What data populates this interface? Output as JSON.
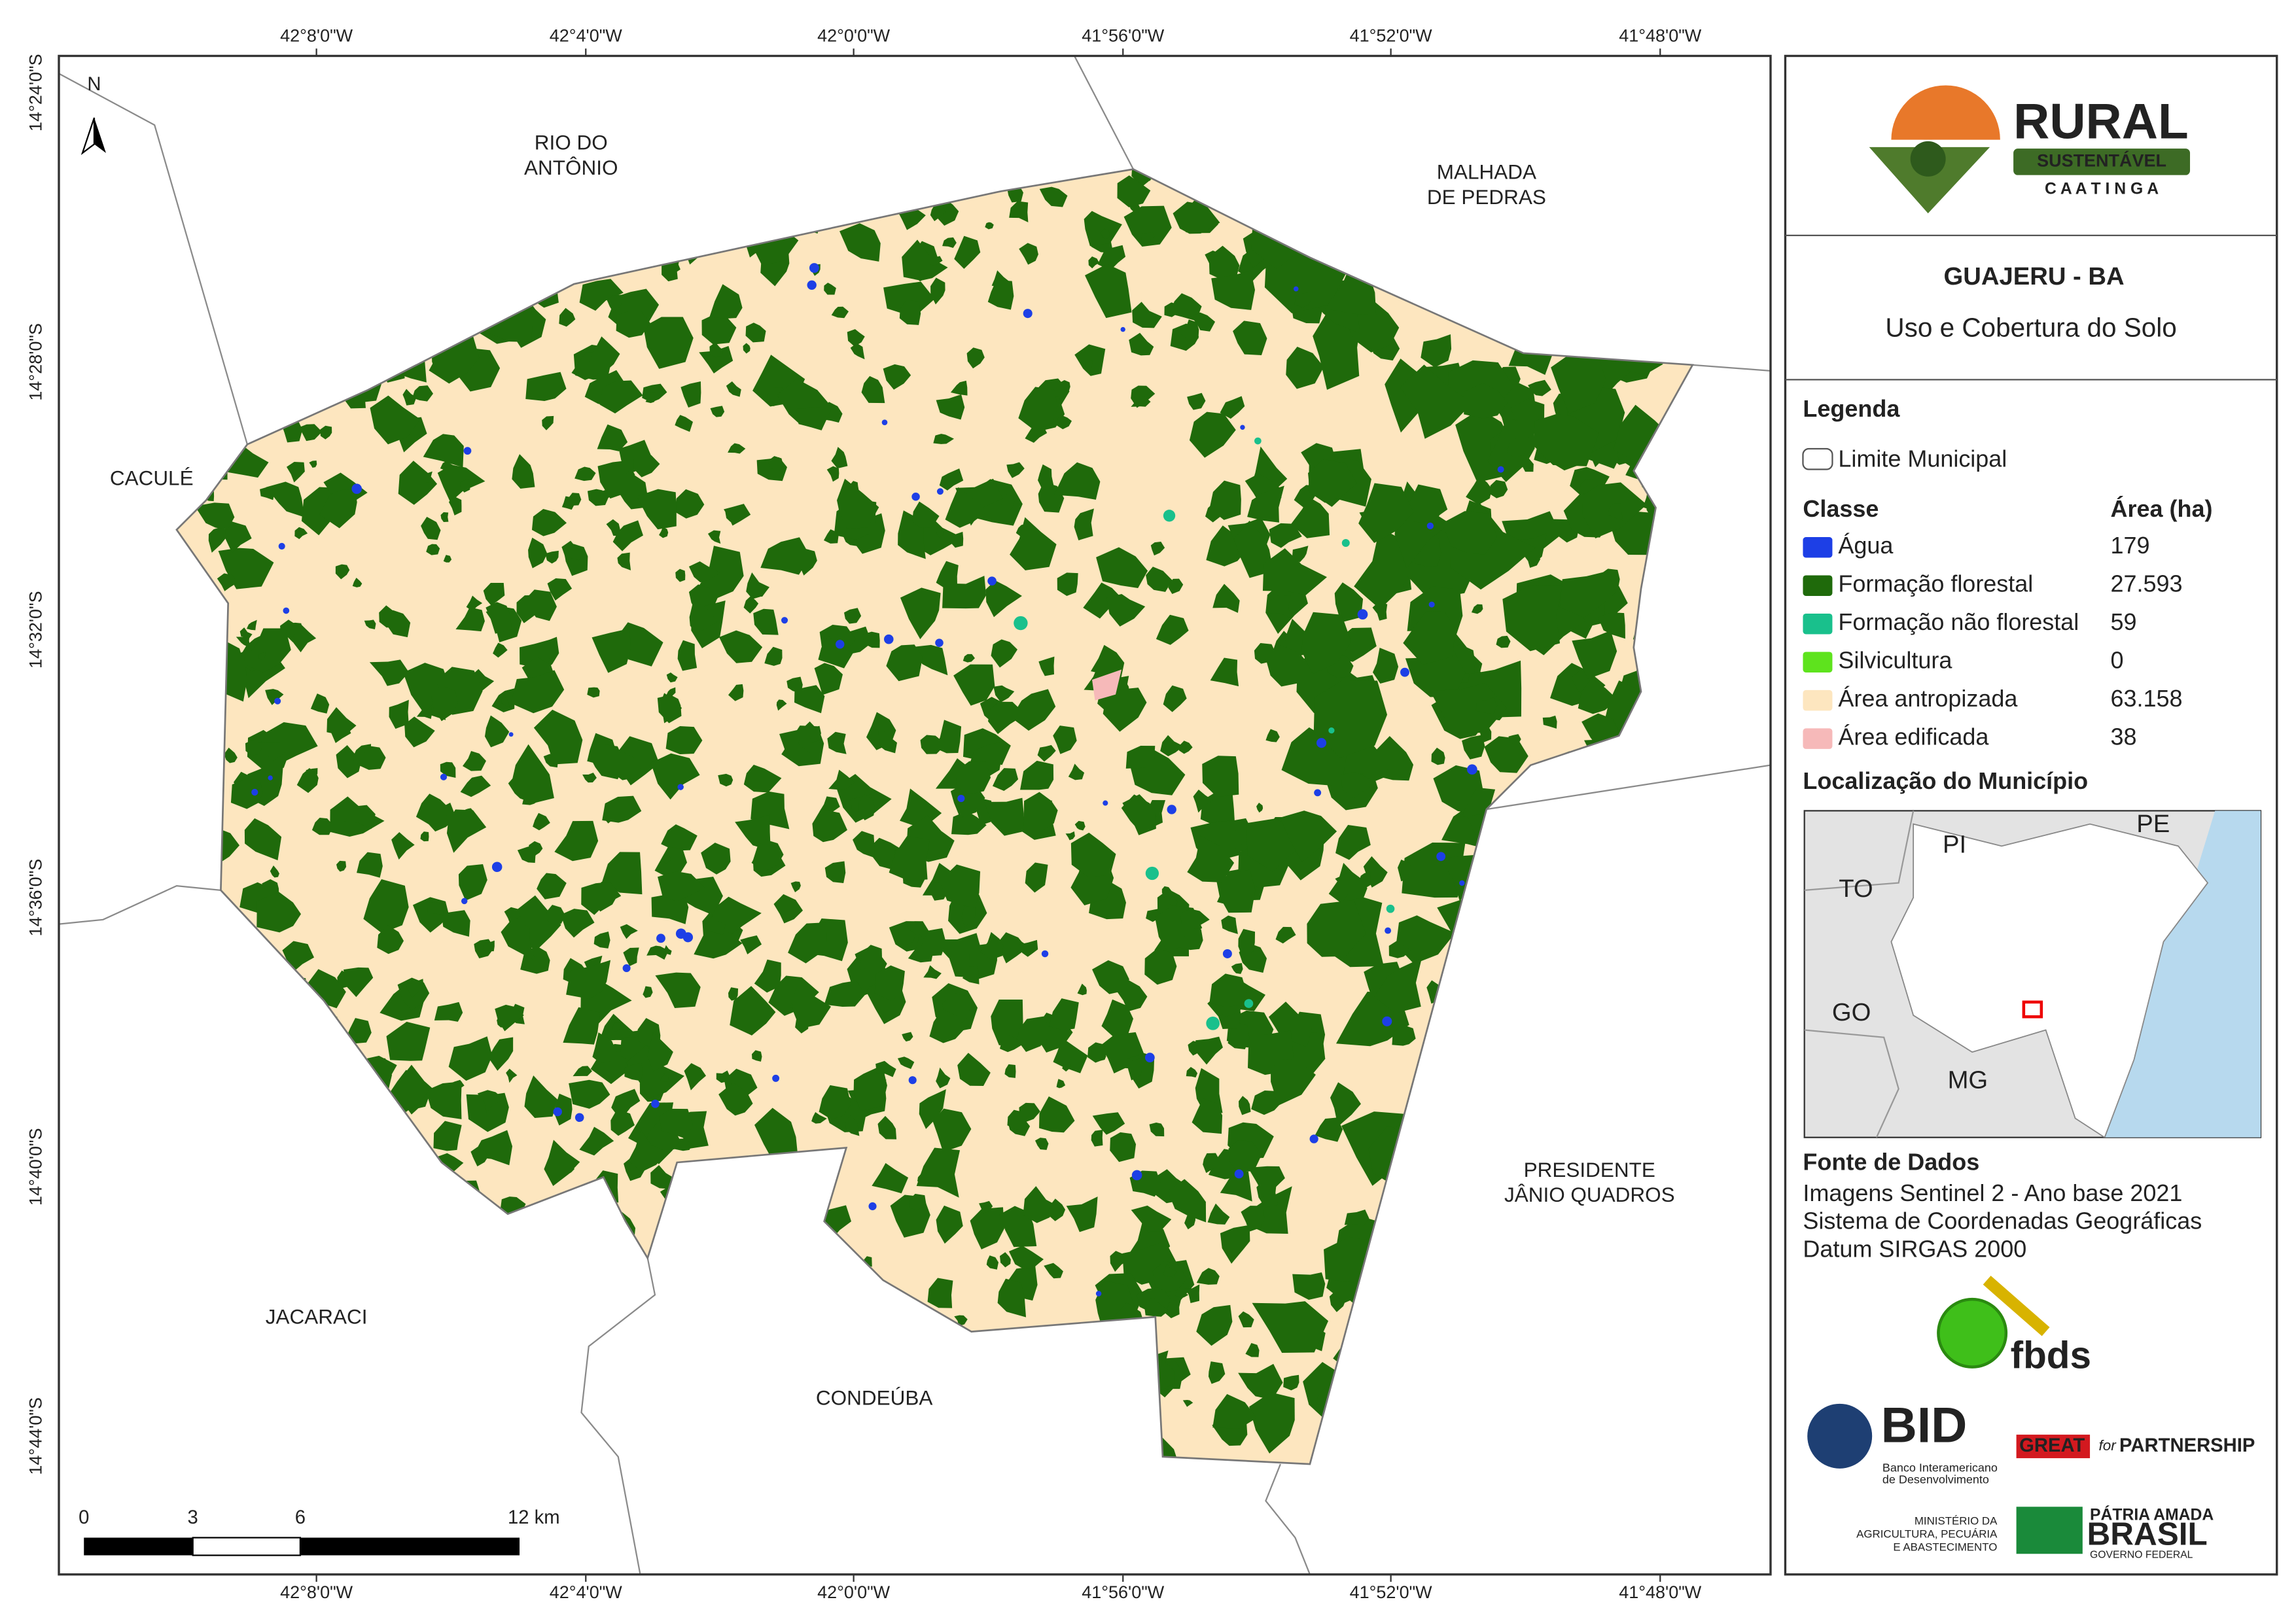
{
  "map": {
    "coordinate_labels": {
      "longitude": [
        "42°8'0\"W",
        "42°4'0\"W",
        "42°0'0\"W",
        "41°56'0\"W",
        "41°52'0\"W",
        "41°48'0\"W"
      ],
      "latitude": [
        "14°24'0\"S",
        "14°28'0\"S",
        "14°32'0\"S",
        "14°36'0\"S",
        "14°40'0\"S",
        "14°44'0\"S"
      ]
    },
    "north_arrow": "N",
    "neighbors": [
      [
        "RIO DO",
        "ANTÔNIO"
      ],
      [
        "MALHADA",
        "DE PEDRAS"
      ],
      [
        "CACULÉ"
      ],
      [
        "PRESIDENTE",
        "JÂNIO QUADROS"
      ],
      [
        "JACARACI"
      ],
      [
        "CONDEÚBA"
      ]
    ],
    "scale_bar": [
      "0",
      "3",
      "6",
      "12 km"
    ]
  },
  "panel": {
    "logo": {
      "title": "RURAL",
      "subtitle": "SUSTENTÁVEL",
      "region": "C A A T I N G A"
    },
    "title": "GUAJERU - BA",
    "subtitle": "Uso e Cobertura do Solo",
    "legend": {
      "heading": "Legenda",
      "boundary": "Limite Municipal",
      "class_heading": "Classe",
      "area_heading": "Área (ha)",
      "classes": [
        {
          "name": "Água",
          "color": "#1d3fe6",
          "area": "179"
        },
        {
          "name": "Formação florestal",
          "color": "#1f6a0b",
          "area": "27.593"
        },
        {
          "name": "Formação não florestal",
          "color": "#19c08c",
          "area": "59"
        },
        {
          "name": "Silvicultura",
          "color": "#5ee31d",
          "area": "0"
        },
        {
          "name": "Área antropizada",
          "color": "#fde6bf",
          "area": "63.158"
        },
        {
          "name": "Área edificada",
          "color": "#f6b9b9",
          "area": "38"
        }
      ]
    },
    "location": {
      "heading": "Localização do Município",
      "states": [
        "PI",
        "PE",
        "TO",
        "GO",
        "MG"
      ]
    },
    "sources": {
      "heading": "Fonte de Dados",
      "lines": [
        "Imagens Sentinel 2 - Ano base 2021",
        "Sistema de Coordenadas Geográficas",
        "Datum SIRGAS 2000"
      ]
    },
    "logos": {
      "fbds": "fbds",
      "bid": "BID",
      "bid_name": [
        "Banco Interamericano",
        "de Desenvolvimento"
      ],
      "great": "GREAT",
      "great_for": "for",
      "partnership": "PARTNERSHIP",
      "ministry": [
        "MINISTÉRIO DA",
        "AGRICULTURA, PECUÁRIA",
        "E ABASTECIMENTO"
      ],
      "brasil_top": "PÁTRIA AMADA",
      "brasil": "BRASIL",
      "gov": "GOVERNO FEDERAL"
    }
  }
}
